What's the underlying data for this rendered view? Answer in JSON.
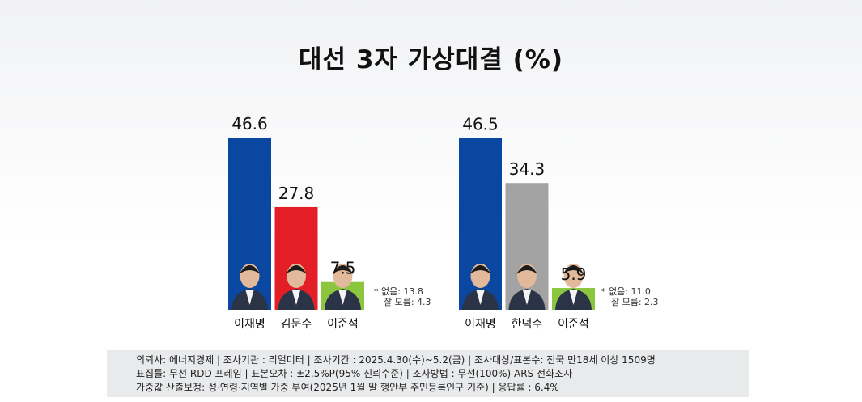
{
  "title": "대선 3자 가상대결 (%)",
  "chart_data": [
    {
      "type": "bar",
      "categories": [
        "이재명",
        "김문수",
        "이준석"
      ],
      "values": [
        46.6,
        27.8,
        7.5
      ],
      "colors": [
        "#0a47a1",
        "#e41e26",
        "#8cc63f"
      ],
      "ylim": [
        0,
        50
      ],
      "note": [
        "* 없음: 13.8",
        "잘 모름: 4.3"
      ]
    },
    {
      "type": "bar",
      "categories": [
        "이재명",
        "한덕수",
        "이준석"
      ],
      "values": [
        46.5,
        34.3,
        5.9
      ],
      "colors": [
        "#0a47a1",
        "#a3a3a3",
        "#8cc63f"
      ],
      "ylim": [
        0,
        50
      ],
      "note": [
        "* 없음: 11.0",
        "잘 모름: 2.3"
      ]
    }
  ],
  "footer": {
    "line1": "의뢰사: 에너지경제 | 조사기관 : 리얼미터  |  조사기간 : 2025.4.30(수)~5.2(금) | 조사대상/표본수: 전국 만18세 이상 1509명",
    "line2": "표집틀: 무선 RDD 프레임 | 표본오차 : ±2.5%P(95% 신뢰수준) | 조사방법 : 무선(100%) ARS 전화조사",
    "line3": "가중값 산출보정: 성·연령·지역별 가중 부여(2025년 1월 말 행안부 주민등록인구 기준) | 응답률 : 6.4%"
  }
}
